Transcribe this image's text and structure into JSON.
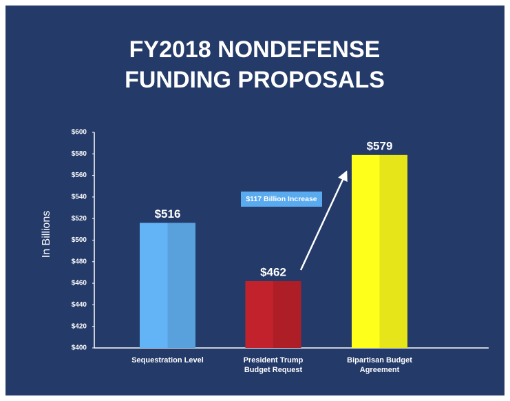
{
  "chart_data": {
    "type": "bar",
    "title": "FY2018 NONDEFENSE FUNDING PROPOSALS",
    "y_label": "In Billions",
    "categories": [
      "Sequestration Level",
      "President Trump Budget Request",
      "Bipartisan Budget Agreement"
    ],
    "values": [
      516,
      462,
      579
    ],
    "value_labels": [
      "$516",
      "$462",
      "$579"
    ],
    "colors": [
      "#63b4f6",
      "#c2222c",
      "#ffff1c"
    ],
    "annotation": "$117 Billion Increase",
    "ylim": [
      400,
      600
    ],
    "yticks": [
      {
        "value": 400,
        "label": "$400"
      },
      {
        "value": 420,
        "label": "$420"
      },
      {
        "value": 440,
        "label": "$440"
      },
      {
        "value": 460,
        "label": "$460"
      },
      {
        "value": 480,
        "label": "$480"
      },
      {
        "value": 500,
        "label": "$500"
      },
      {
        "value": 520,
        "label": "$520"
      },
      {
        "value": 540,
        "label": "$540"
      },
      {
        "value": 560,
        "label": "$560"
      },
      {
        "value": 580,
        "label": "$580"
      },
      {
        "value": 600,
        "label": "$600"
      }
    ],
    "grid": false
  }
}
